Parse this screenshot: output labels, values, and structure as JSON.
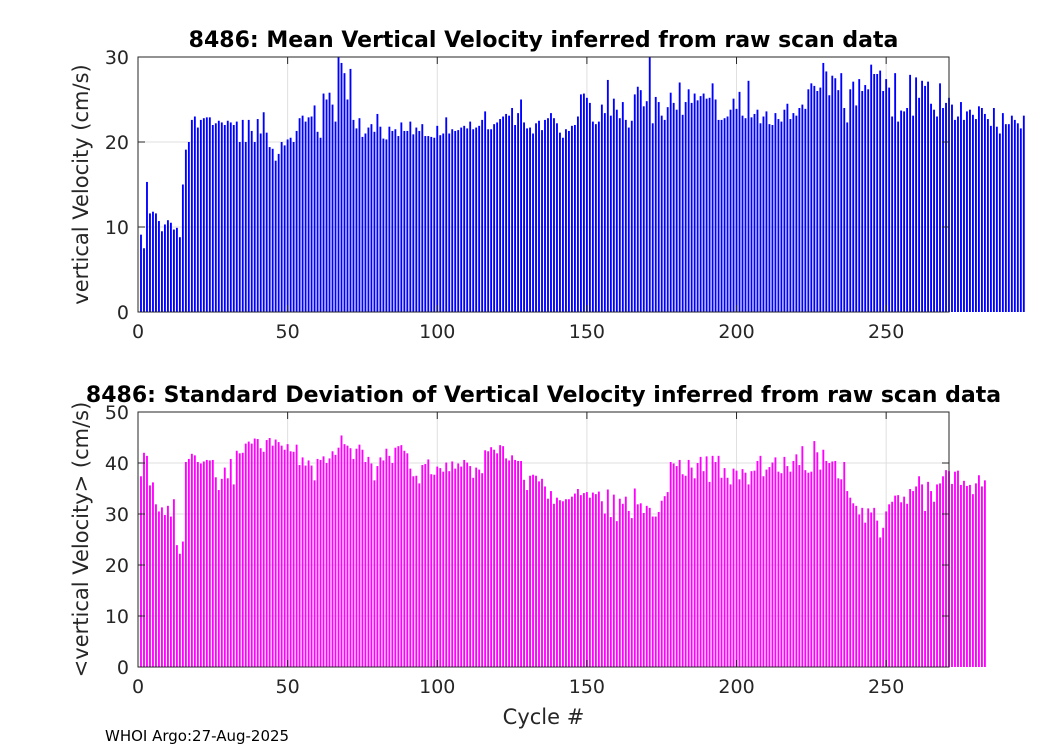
{
  "chart_data": [
    {
      "type": "bar",
      "title": "8486: Mean Vertical Velocity inferred from raw scan data",
      "xlabel": "",
      "ylabel": "vertical Velocity (cm/s)",
      "xlim": [
        0,
        271
      ],
      "ylim": [
        0,
        30
      ],
      "xticks": [
        0,
        50,
        100,
        150,
        200,
        250
      ],
      "yticks": [
        0,
        10,
        20,
        30
      ],
      "grid": true,
      "color": "#0000ff",
      "x_start": 1,
      "values": [
        9.1,
        7.5,
        15.3,
        11.6,
        11.8,
        11.6,
        10.7,
        9.5,
        10.3,
        10.8,
        10.5,
        9.7,
        9.9,
        8.8,
        15.0,
        19.1,
        20.0,
        22.6,
        23.0,
        21.7,
        22.6,
        22.8,
        22.9,
        22.9,
        22.0,
        22.2,
        22.5,
        22.3,
        22.0,
        22.5,
        22.3,
        22.0,
        22.4,
        20.0,
        22.6,
        20.0,
        22.6,
        21.3,
        20.0,
        22.7,
        21.0,
        23.5,
        21.1,
        19.4,
        19.2,
        17.8,
        18.6,
        20.0,
        19.6,
        20.3,
        20.5,
        20.0,
        21.3,
        22.8,
        23.1,
        22.4,
        22.9,
        23.0,
        24.3,
        21.2,
        20.5,
        25.7,
        25.0,
        25.8,
        24.4,
        22.4,
        30.0,
        29.3,
        28.1,
        25.0,
        28.6,
        22.6,
        21.6,
        22.8,
        20.6,
        21.0,
        21.7,
        22.1,
        21.2,
        23.3,
        21.8,
        20.4,
        20.3,
        21.8,
        21.3,
        21.5,
        20.7,
        22.3,
        21.3,
        21.3,
        22.4,
        20.9,
        21.7,
        21.3,
        22.1,
        20.7,
        20.7,
        20.6,
        20.5,
        21.9,
        20.8,
        21.0,
        22.9,
        21.0,
        21.5,
        21.3,
        21.4,
        21.7,
        21.9,
        21.6,
        22.4,
        21.5,
        21.7,
        21.9,
        22.6,
        23.6,
        21.5,
        21.5,
        22.1,
        22.3,
        22.7,
        23.0,
        23.3,
        23.1,
        24.0,
        22.0,
        23.4,
        25.0,
        22.3,
        21.6,
        21.7,
        21.0,
        22.2,
        22.5,
        21.4,
        22.6,
        22.8,
        23.4,
        22.8,
        22.2,
        21.1,
        20.5,
        21.5,
        21.3,
        21.9,
        22.0,
        23.0,
        25.6,
        25.7,
        25.2,
        24.6,
        22.4,
        22.1,
        22.4,
        24.4,
        23.4,
        27.3,
        23.1,
        25.1,
        23.8,
        22.8,
        24.7,
        22.6,
        21.7,
        22.5,
        25.6,
        26.5,
        26.1,
        24.2,
        24.8,
        30.0,
        22.2,
        25.3,
        24.7,
        23.1,
        22.6,
        24.1,
        25.8,
        24.6,
        23.8,
        27.0,
        23.2,
        24.7,
        26.2,
        24.6,
        25.7,
        24.9,
        25.4,
        25.7,
        25.1,
        25.2,
        26.9,
        25.0,
        22.6,
        22.6,
        22.8,
        23.0,
        23.8,
        25.1,
        23.9,
        25.9,
        23.1,
        22.8,
        27.2,
        22.9,
        23.3,
        23.8,
        22.2,
        23.0,
        23.6,
        22.1,
        22.0,
        23.4,
        22.7,
        22.4,
        23.8,
        24.5,
        22.7,
        23.4,
        23.1,
        24.0,
        24.4,
        23.9,
        26.2,
        26.9,
        26.6,
        26.0,
        26.4,
        29.3,
        28.3,
        25.5,
        27.8,
        27.5,
        26.1,
        28.1,
        24.0,
        22.3,
        26.2,
        27.1,
        24.3,
        27.4,
        26.0,
        26.7,
        26.2,
        29.1,
        28.0,
        28.0,
        28.4,
        26.0,
        27.4,
        26.4,
        23.0,
        28.1,
        22.4,
        23.7,
        23.6,
        24.0,
        27.9,
        23.1,
        27.6,
        25.2,
        27.2,
        26.6,
        27.1,
        24.5,
        23.8,
        23.0,
        26.9,
        24.0,
        24.6,
        25.2,
        24.4,
        22.6,
        23.0,
        24.7,
        22.6,
        23.6,
        23.8,
        23.2,
        22.7,
        24.2,
        24.0,
        23.3,
        22.7,
        21.9,
        24.0,
        21.8,
        21.0,
        23.4,
        22.1,
        22.1,
        23.1,
        22.6,
        22.2,
        21.6,
        23.1
      ]
    },
    {
      "type": "bar",
      "title": "8486: Standard Deviation of Vertical Velocity inferred from raw scan data",
      "xlabel": "Cycle #",
      "ylabel": "<vertical Velocity> (cm/s)",
      "xlim": [
        0,
        271
      ],
      "ylim": [
        0,
        50
      ],
      "xticks": [
        0,
        50,
        100,
        150,
        200,
        250
      ],
      "yticks": [
        0,
        10,
        20,
        30,
        40,
        50
      ],
      "grid": true,
      "color": "#ff00ff",
      "x_start": 1,
      "values": [
        37.4,
        42.0,
        41.4,
        35.6,
        36.2,
        31.9,
        30.5,
        31.3,
        29.8,
        31.6,
        29.5,
        32.9,
        23.9,
        22.2,
        24.6,
        40.2,
        40.8,
        41.8,
        41.5,
        40.2,
        39.9,
        40.3,
        40.6,
        40.5,
        40.6,
        37.2,
        34.7,
        36.9,
        39.1,
        37.0,
        40.8,
        35.8,
        42.4,
        41.9,
        42.0,
        43.8,
        44.2,
        43.8,
        44.8,
        44.7,
        42.9,
        42.2,
        44.5,
        44.9,
        43.4,
        44.6,
        44.1,
        43.4,
        42.6,
        43.7,
        42.3,
        42.2,
        43.6,
        39.6,
        41.1,
        39.5,
        40.5,
        39.5,
        36.6,
        40.8,
        40.6,
        41.3,
        40.0,
        40.9,
        42.3,
        41.6,
        43.0,
        45.4,
        43.7,
        43.4,
        42.9,
        40.8,
        42.8,
        43.6,
        42.6,
        40.2,
        41.2,
        39.9,
        36.6,
        39.4,
        41.1,
        40.5,
        42.8,
        41.4,
        40.0,
        43.0,
        43.3,
        43.5,
        42.4,
        41.9,
        38.9,
        37.4,
        37.5,
        36.0,
        39.6,
        39.8,
        40.7,
        37.8,
        37.7,
        39.3,
        39.0,
        38.3,
        40.1,
        38.4,
        40.3,
        38.9,
        39.9,
        39.3,
        40.6,
        40.1,
        39.4,
        37.1,
        39.1,
        38.7,
        38.0,
        42.5,
        42.3,
        43.1,
        42.6,
        41.9,
        43.5,
        43.3,
        40.9,
        40.5,
        41.5,
        40.6,
        40.4,
        40.4,
        36.7,
        34.7,
        37.5,
        37.7,
        37.5,
        36.4,
        36.9,
        35.4,
        33.0,
        34.5,
        32.0,
        33.2,
        32.7,
        32.5,
        32.9,
        32.9,
        33.4,
        34.0,
        34.9,
        33.7,
        34.1,
        34.3,
        33.2,
        34.2,
        33.9,
        34.4,
        32.5,
        30.1,
        34.8,
        29.4,
        33.8,
        28.6,
        33.0,
        32.0,
        33.4,
        30.6,
        29.2,
        35.0,
        31.9,
        32.1,
        30.2,
        31.6,
        31.2,
        29.5,
        29.5,
        30.4,
        32.6,
        33.5,
        34.3,
        40.2,
        39.9,
        39.4,
        40.6,
        37.8,
        37.5,
        40.6,
        39.1,
        37.0,
        40.0,
        41.2,
        38.4,
        41.3,
        36.3,
        41.4,
        40.2,
        41.4,
        37.1,
        39.0,
        37.1,
        35.8,
        38.9,
        38.5,
        36.8,
        38.8,
        38.1,
        35.8,
        38.4,
        38.5,
        40.4,
        41.4,
        37.4,
        38.7,
        39.2,
        40.1,
        41.1,
        38.3,
        38.0,
        41.2,
        39.4,
        38.3,
        40.4,
        41.7,
        39.6,
        43.3,
        38.6,
        38.1,
        38.3,
        44.3,
        42.1,
        38.7,
        42.6,
        40.4,
        40.0,
        40.3,
        40.4,
        37.0,
        36.8,
        40.2,
        34.5,
        33.2,
        32.1,
        31.6,
        29.9,
        31.2,
        28.3,
        31.1,
        30.3,
        31.2,
        28.7,
        25.4,
        27.3,
        30.5,
        31.9,
        32.4,
        33.6,
        33.7,
        32.3,
        33.4,
        32.0,
        34.9,
        34.5,
        35.4,
        37.4,
        35.8,
        30.6,
        36.3,
        34.5,
        32.4,
        35.8,
        36.0,
        37.4,
        38.6,
        38.4,
        35.9,
        38.3,
        38.5,
        35.7,
        36.5,
        35.5,
        35.7,
        33.9,
        36.0,
        37.6,
        35.4,
        36.6
      ]
    }
  ],
  "footer": "WHOI Argo:27-Aug-2025"
}
